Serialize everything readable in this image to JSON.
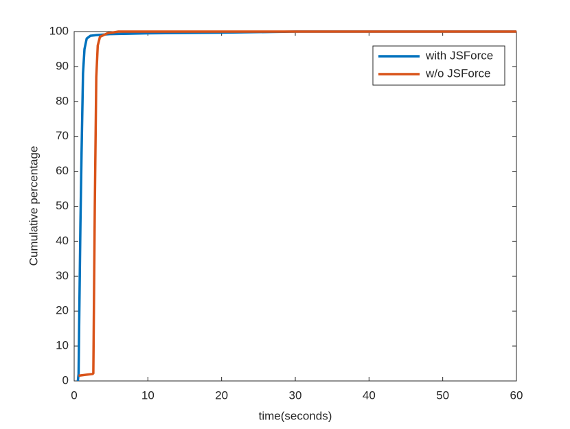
{
  "chart_data": {
    "type": "line",
    "xlabel": "time(seconds)",
    "ylabel": "Cumulative percentage",
    "xlim": [
      0,
      60
    ],
    "ylim": [
      0,
      100
    ],
    "xticks": [
      0,
      10,
      20,
      30,
      40,
      50,
      60
    ],
    "yticks": [
      0,
      10,
      20,
      30,
      40,
      50,
      60,
      70,
      80,
      90,
      100
    ],
    "legend_position": "northeast",
    "series": [
      {
        "name": "with JSForce",
        "color": "#0072BD",
        "x": [
          0.5,
          0.6,
          0.7,
          0.85,
          1.0,
          1.2,
          1.4,
          1.7,
          2.2,
          3,
          5,
          10,
          20,
          30,
          60
        ],
        "values": [
          0,
          2,
          20,
          45,
          65,
          88,
          95,
          98,
          98.8,
          99,
          99.3,
          99.5,
          99.7,
          100,
          100
        ]
      },
      {
        "name": "w/o JSForce",
        "color": "#D95319",
        "x": [
          0.6,
          2.5,
          2.6,
          2.8,
          3.0,
          3.2,
          3.5,
          4.5,
          6,
          60
        ],
        "values": [
          1.5,
          2,
          2.2,
          50,
          87,
          96,
          98.5,
          99.5,
          100,
          100
        ]
      }
    ]
  }
}
